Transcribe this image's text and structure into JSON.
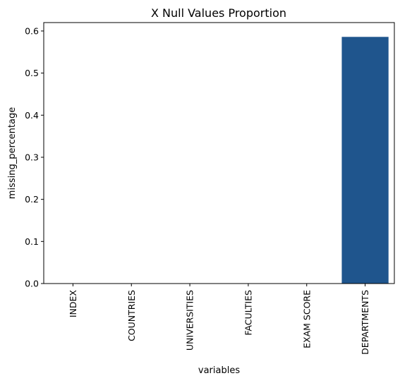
{
  "chart_data": {
    "type": "bar",
    "title": "X Null Values Proportion",
    "xlabel": "variables",
    "ylabel": "missing_percentage",
    "categories": [
      "INDEX",
      "COUNTRIES",
      "UNIVERSITIES",
      "FACULTIES",
      "EXAM SCORE",
      "DEPARTMENTS"
    ],
    "values": [
      0,
      0,
      0,
      0,
      0,
      0.586
    ],
    "ylim": [
      0,
      0.62
    ],
    "yticks": [
      0.0,
      0.1,
      0.2,
      0.3,
      0.4,
      0.5,
      0.6
    ],
    "ytick_labels": [
      "0.0",
      "0.1",
      "0.2",
      "0.3",
      "0.4",
      "0.5",
      "0.6"
    ],
    "bar_color": "#1f558d",
    "grid": false,
    "legend": "none"
  }
}
